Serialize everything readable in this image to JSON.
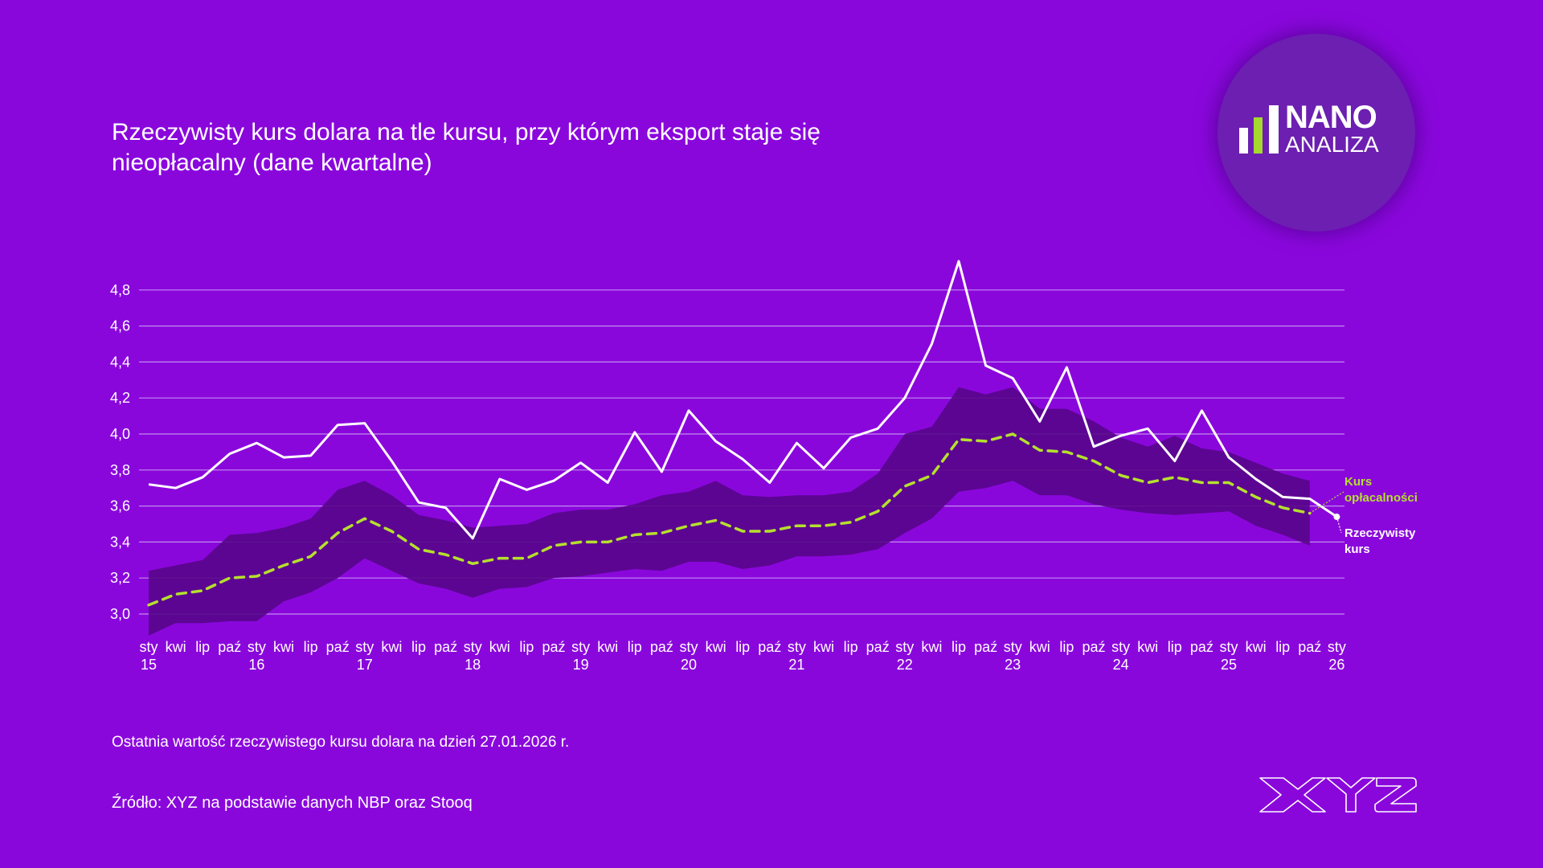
{
  "header": {
    "title_line1": "Rzeczywisty kurs dolara na tle kursu, przy którym eksport staje się",
    "title_line2": "nieopłacalny (dane kwartalne)"
  },
  "logo": {
    "name_bold": "NANO",
    "name_light": "ANALIZA",
    "icon": "bar-chart-icon"
  },
  "footer": {
    "note": "Ostatnia wartość rzeczywistego kursu dolara na dzień 27.01.2026 r.",
    "source": "Źródło: XYZ na podstawie danych NBP oraz Stooq",
    "brand": "XYZ"
  },
  "colors": {
    "background": "#8a07dc",
    "band": "#56068a",
    "real_line": "#ffffff",
    "threshold_line": "#b5e02e",
    "grid": "#c9a3ef",
    "logo_circle": "#6c1fb1",
    "logo_accent": "#a6d930"
  },
  "chart_data": {
    "type": "line",
    "title": "Rzeczywisty kurs dolara na tle kursu, przy którym eksport staje się nieopłacalny (dane kwartalne)",
    "xlabel": "",
    "ylabel": "",
    "ylim": [
      2.85,
      4.98
    ],
    "yticks": [
      3.0,
      3.2,
      3.4,
      3.6,
      3.8,
      4.0,
      4.2,
      4.4,
      4.6,
      4.8
    ],
    "ytick_labels": [
      "3,0",
      "3,2",
      "3,4",
      "3,6",
      "3,8",
      "4,0",
      "4,2",
      "4,4",
      "4,6",
      "4,8"
    ],
    "grid": true,
    "months": [
      "sty",
      "kwi",
      "lip",
      "paź",
      "sty",
      "kwi",
      "lip",
      "paź",
      "sty",
      "kwi",
      "lip",
      "paź",
      "sty",
      "kwi",
      "lip",
      "paź",
      "sty",
      "kwi",
      "lip",
      "paź",
      "sty",
      "kwi",
      "lip",
      "paź",
      "sty",
      "kwi",
      "lip",
      "paź",
      "sty",
      "kwi",
      "lip",
      "paź",
      "sty",
      "kwi",
      "lip",
      "paź",
      "sty",
      "kwi",
      "lip",
      "paź",
      "sty",
      "kwi",
      "lip",
      "paź",
      "sty"
    ],
    "years": {
      "0": "15",
      "4": "16",
      "8": "17",
      "12": "18",
      "16": "19",
      "20": "20",
      "24": "21",
      "28": "22",
      "32": "23",
      "36": "24",
      "40": "25",
      "44": "26"
    },
    "series": [
      {
        "name": "Rzeczywisty kurs",
        "style": "solid",
        "values": [
          3.72,
          3.7,
          3.76,
          3.89,
          3.95,
          3.87,
          3.88,
          4.05,
          4.06,
          3.85,
          3.62,
          3.59,
          3.42,
          3.75,
          3.69,
          3.74,
          3.84,
          3.73,
          4.01,
          3.79,
          4.13,
          3.96,
          3.86,
          3.73,
          3.95,
          3.81,
          3.98,
          4.03,
          4.2,
          4.5,
          4.96,
          4.38,
          4.31,
          4.07,
          4.37,
          3.93,
          3.99,
          4.03,
          3.85,
          4.13,
          3.87,
          3.75,
          3.65,
          3.64,
          3.54
        ]
      },
      {
        "name": "Kurs opłacalności",
        "style": "dashed",
        "values": [
          3.05,
          3.11,
          3.13,
          3.2,
          3.21,
          3.27,
          3.32,
          3.45,
          3.53,
          3.46,
          3.36,
          3.33,
          3.28,
          3.31,
          3.31,
          3.38,
          3.4,
          3.4,
          3.44,
          3.45,
          3.49,
          3.52,
          3.46,
          3.46,
          3.49,
          3.49,
          3.51,
          3.57,
          3.71,
          3.77,
          3.97,
          3.96,
          4.0,
          3.91,
          3.9,
          3.85,
          3.77,
          3.73,
          3.76,
          3.73,
          3.73,
          3.65,
          3.59,
          3.56
        ]
      },
      {
        "name": "Przedział kursu opłacalności (górna granica)",
        "style": "band-upper",
        "values": [
          3.24,
          3.27,
          3.3,
          3.44,
          3.45,
          3.48,
          3.53,
          3.69,
          3.74,
          3.66,
          3.55,
          3.52,
          3.48,
          3.49,
          3.5,
          3.56,
          3.58,
          3.58,
          3.61,
          3.66,
          3.68,
          3.74,
          3.66,
          3.65,
          3.66,
          3.66,
          3.68,
          3.78,
          4.0,
          4.04,
          4.26,
          4.22,
          4.26,
          4.14,
          4.14,
          4.07,
          3.98,
          3.93,
          3.99,
          3.92,
          3.9,
          3.84,
          3.78,
          3.74
        ]
      },
      {
        "name": "Przedział kursu opłacalności (dolna granica)",
        "style": "band-lower",
        "values": [
          2.88,
          2.95,
          2.95,
          2.96,
          2.96,
          3.07,
          3.12,
          3.2,
          3.31,
          3.24,
          3.17,
          3.14,
          3.09,
          3.14,
          3.15,
          3.2,
          3.21,
          3.23,
          3.25,
          3.24,
          3.29,
          3.29,
          3.25,
          3.27,
          3.32,
          3.32,
          3.33,
          3.36,
          3.45,
          3.53,
          3.68,
          3.7,
          3.74,
          3.66,
          3.66,
          3.61,
          3.58,
          3.56,
          3.55,
          3.56,
          3.57,
          3.49,
          3.44,
          3.38
        ]
      }
    ],
    "annotations": [
      {
        "text_line1": "Kurs",
        "text_line2": "opłacalności",
        "series": "Kurs opłacalności",
        "color": "#b5e02e"
      },
      {
        "text_line1": "Rzeczywisty",
        "text_line2": "kurs",
        "series": "Rzeczywisty kurs",
        "color": "#ffffff"
      }
    ],
    "legend": "inline-right"
  }
}
